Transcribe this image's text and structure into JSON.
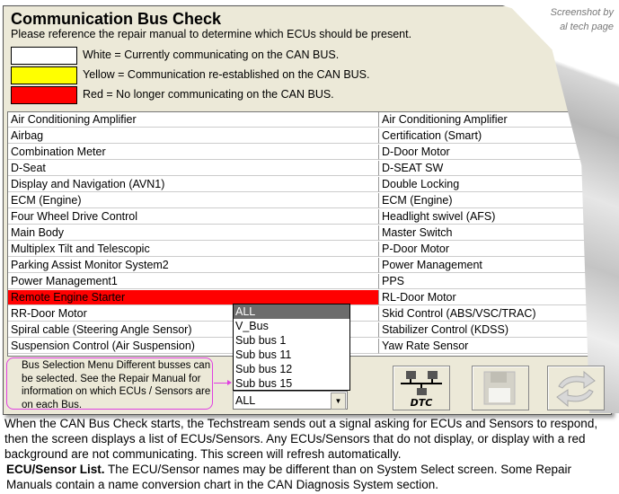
{
  "watermark": [
    "Screenshot  by",
    "al tech page"
  ],
  "title": "Communication Bus Check",
  "subtitle": "Please reference the repair manual to determine which ECUs should be present.",
  "legend": [
    {
      "color": "#ffffff",
      "text": "White = Currently communicating on the CAN BUS."
    },
    {
      "color": "#ffff00",
      "text": "Yellow = Communication re-established on the CAN BUS."
    },
    {
      "color": "#ff0000",
      "text": "Red = No longer communicating on the CAN BUS."
    }
  ],
  "rows": [
    [
      "Air Conditioning Amplifier",
      "Air Conditioning Amplifier"
    ],
    [
      "Airbag",
      "Certification (Smart)"
    ],
    [
      "Combination Meter",
      "D-Door Motor"
    ],
    [
      "D-Seat",
      "D-SEAT SW"
    ],
    [
      "Display and Navigation (AVN1)",
      "Double Locking"
    ],
    [
      "ECM (Engine)",
      "ECM (Engine)"
    ],
    [
      "Four Wheel Drive Control",
      "Headlight swivel (AFS)"
    ],
    [
      "Main Body",
      "Master Switch"
    ],
    [
      "Multiplex Tilt and Telescopic",
      "P-Door Motor"
    ],
    [
      "Parking Assist Monitor System2",
      "Power Management"
    ],
    [
      "Power Management1",
      "PPS"
    ],
    [
      "Remote Engine Starter",
      "RL-Door Motor"
    ],
    [
      "RR-Door Motor",
      "Skid Control (ABS/VSC/TRAC)"
    ],
    [
      "Spiral cable (Steering Angle Sensor)",
      "Stabilizer Control (KDSS)"
    ],
    [
      "Suspension Control (Air Suspension)",
      "Yaw Rate Sensor"
    ]
  ],
  "red_row": 11,
  "callout": "Bus Selection Menu Different busses can be selected. See the Repair Manual for information on which ECUs / Sensors are on each Bus.",
  "bus_options": [
    "ALL",
    "V_Bus",
    "Sub bus 1",
    "Sub bus 11",
    "Sub bus 12",
    "Sub bus 15"
  ],
  "bus_selected": "ALL",
  "dtc_label": "DTC",
  "footer": {
    "p1": "When the CAN Bus Check starts, the Techstream sends out a signal asking for ECUs and Sensors to respond, then the screen displays a list of ECUs/Sensors. Any ECUs/Sensors that do not display, or display with a red background are not communicating. This screen will refresh automatically.",
    "p2_bold": "ECU/Sensor List.",
    "p2": " The ECU/Sensor names may be different than on System Select screen. Some Repair Manuals contain a name conversion chart in the CAN Diagnosis System section."
  }
}
